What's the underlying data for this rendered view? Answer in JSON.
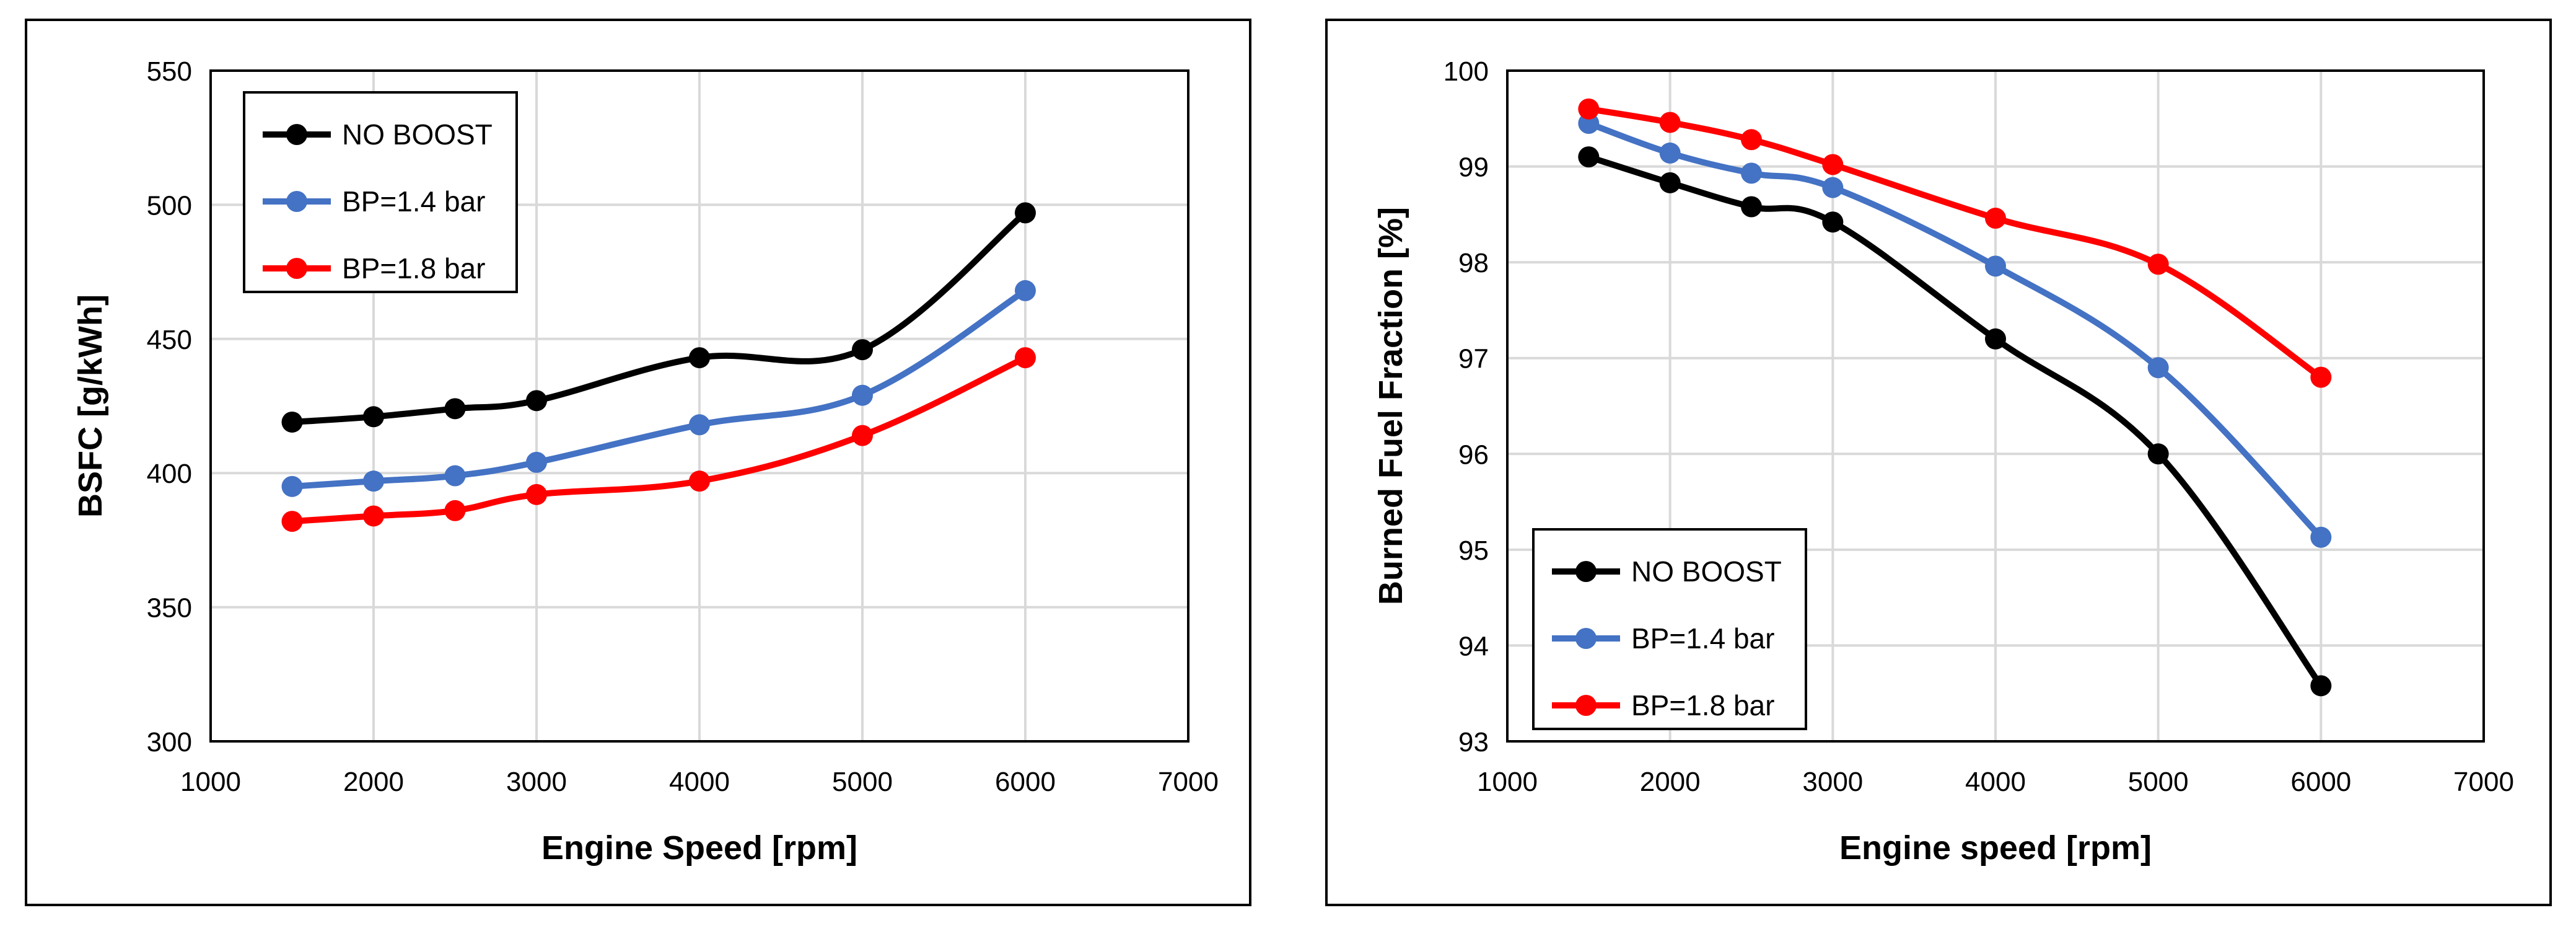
{
  "chart_data": [
    {
      "type": "line",
      "title": "",
      "xlabel": "Engine Speed [rpm]",
      "ylabel": "BSFC [g/kWh]",
      "xlim": [
        1000,
        7000
      ],
      "ylim": [
        300,
        550
      ],
      "xticks": [
        1000,
        2000,
        3000,
        4000,
        5000,
        6000,
        7000
      ],
      "yticks": [
        300,
        350,
        400,
        450,
        500,
        550
      ],
      "x": [
        1500,
        2000,
        2500,
        3000,
        4000,
        5000,
        6000
      ],
      "legend_position": "top-left",
      "series": [
        {
          "name": "NO BOOST",
          "color": "#000000",
          "values": [
            419,
            421,
            424,
            427,
            443,
            446,
            497
          ]
        },
        {
          "name": "BP=1.4 bar",
          "color": "#4472c4",
          "values": [
            395,
            397,
            399,
            404,
            418,
            429,
            468
          ]
        },
        {
          "name": "BP=1.8 bar",
          "color": "#ff0000",
          "values": [
            382,
            384,
            386,
            392,
            397,
            414,
            443
          ]
        }
      ]
    },
    {
      "type": "line",
      "title": "",
      "xlabel": "Engine speed [rpm]",
      "ylabel": "Burned Fuel Fraction [%]",
      "xlim": [
        1000,
        7000
      ],
      "ylim": [
        93,
        100
      ],
      "xticks": [
        1000,
        2000,
        3000,
        4000,
        5000,
        6000,
        7000
      ],
      "yticks": [
        93,
        94,
        95,
        96,
        97,
        98,
        99,
        100
      ],
      "x": [
        1500,
        2000,
        2500,
        3000,
        4000,
        5000,
        6000
      ],
      "legend_position": "bottom-left",
      "series": [
        {
          "name": "NO BOOST",
          "color": "#000000",
          "values": [
            99.1,
            98.83,
            98.58,
            98.42,
            97.2,
            96.0,
            93.58
          ]
        },
        {
          "name": "BP=1.4 bar",
          "color": "#4472c4",
          "values": [
            99.45,
            99.14,
            98.93,
            98.78,
            97.96,
            96.9,
            95.13
          ]
        },
        {
          "name": "BP=1.8 bar",
          "color": "#ff0000",
          "values": [
            99.6,
            99.46,
            99.28,
            99.02,
            98.46,
            97.98,
            96.8
          ]
        }
      ]
    }
  ]
}
